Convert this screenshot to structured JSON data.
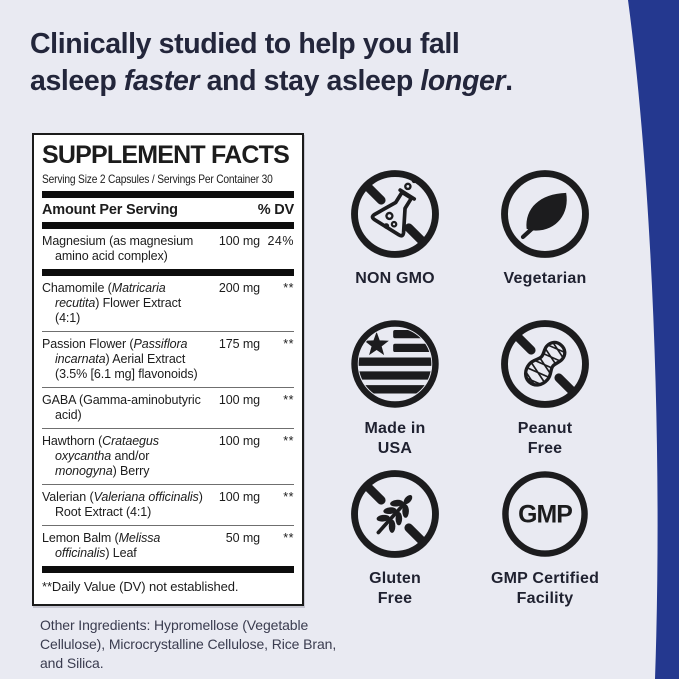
{
  "colors": {
    "background": "#e9eaf2",
    "accent_blue": "#24388f",
    "headline_text": "#23263b",
    "panel_background": "#ffffff",
    "panel_border": "#1b1b1b",
    "icon_ink": "#1c1c1e"
  },
  "headline": {
    "lines": [
      [
        {
          "t": "Clinically studied to help you fall"
        }
      ],
      [
        {
          "t": "asleep "
        },
        {
          "t": "faster",
          "i": true
        },
        {
          "t": " and stay asleep "
        },
        {
          "t": "longer",
          "i": true
        },
        {
          "t": "."
        }
      ]
    ]
  },
  "supplement_facts": {
    "title": "SUPPLEMENT FACTS",
    "serving_line": "Serving Size 2 Capsules / Servings Per Container 30",
    "column_headers": {
      "amount": "Amount Per Serving",
      "dv": "% DV"
    },
    "rows": [
      {
        "segments": [
          {
            "t": "Magnesium (as magnesium amino acid complex)"
          }
        ],
        "amount": "100 mg",
        "dv": "24%",
        "divider_after": "thick"
      },
      {
        "segments": [
          {
            "t": "Chamomile ("
          },
          {
            "t": "Matricaria recutita",
            "i": true
          },
          {
            "t": ") Flower Extract (4:1)"
          }
        ],
        "amount": "200 mg",
        "dv": "**",
        "divider_after": "thin"
      },
      {
        "segments": [
          {
            "t": "Passion Flower ("
          },
          {
            "t": "Passiflora incarnata",
            "i": true
          },
          {
            "t": ") Aerial Extract (3.5% [6.1 mg] flavonoids)"
          }
        ],
        "amount": "175 mg",
        "dv": "**",
        "divider_after": "thin"
      },
      {
        "segments": [
          {
            "t": "GABA (Gamma-aminobutyric acid)"
          }
        ],
        "amount": "100 mg",
        "dv": "**",
        "divider_after": "thin"
      },
      {
        "segments": [
          {
            "t": "Hawthorn ("
          },
          {
            "t": "Crataegus oxycantha",
            "i": true
          },
          {
            "t": " and/or "
          },
          {
            "t": "monogyna",
            "i": true
          },
          {
            "t": ") Berry"
          }
        ],
        "amount": "100 mg",
        "dv": "**",
        "divider_after": "thin"
      },
      {
        "segments": [
          {
            "t": "Valerian ("
          },
          {
            "t": "Valeriana officinalis",
            "i": true
          },
          {
            "t": ") Root Extract (4:1)"
          }
        ],
        "amount": "100 mg",
        "dv": "**",
        "divider_after": "thin"
      },
      {
        "segments": [
          {
            "t": "Lemon Balm ("
          },
          {
            "t": "Melissa officinalis",
            "i": true
          },
          {
            "t": ") Leaf"
          }
        ],
        "amount": "50 mg",
        "dv": "**",
        "divider_after": "thick"
      }
    ],
    "footnote": "**Daily Value (DV) not established."
  },
  "other_ingredients": "Other Ingredients: Hypromellose (Vegetable Cellulose), Microcrystalline Cellulose, Rice Bran, and Silica.",
  "badges": {
    "items": [
      {
        "id": "non-gmo",
        "icon": "flask-crossed-icon",
        "label": "NON GMO"
      },
      {
        "id": "vegetarian",
        "icon": "leaf-icon",
        "label": "Vegetarian"
      },
      {
        "id": "made-in-usa",
        "icon": "usa-flag-icon",
        "label": "Made in\nUSA"
      },
      {
        "id": "peanut-free",
        "icon": "peanut-crossed-icon",
        "label": "Peanut\nFree"
      },
      {
        "id": "gluten-free",
        "icon": "wheat-crossed-icon",
        "label": "Gluten\nFree"
      },
      {
        "id": "gmp-certified",
        "icon": "gmp-circle-icon",
        "label": "GMP Certified\nFacility",
        "circle_text": "GMP"
      }
    ]
  }
}
